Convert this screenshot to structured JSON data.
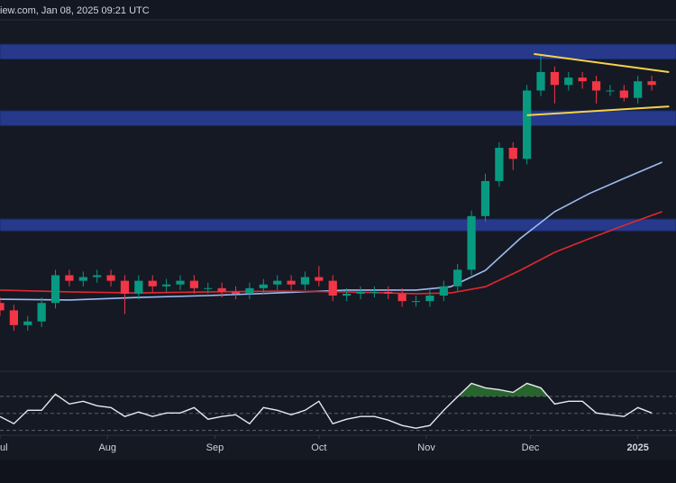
{
  "chart_data": {
    "type": "candlestick",
    "header": "iew.com, Jan 08, 2025 09:21 UTC",
    "xlim": [
      0,
      195
    ],
    "xticks": [
      {
        "value": 0,
        "label": "ul"
      },
      {
        "value": 31,
        "label": "Aug"
      },
      {
        "value": 62,
        "label": "Sep"
      },
      {
        "value": 92,
        "label": "Oct"
      },
      {
        "value": 123,
        "label": "Nov"
      },
      {
        "value": 153,
        "label": "Dec"
      },
      {
        "value": 184,
        "label": "2025"
      }
    ],
    "ylim": [
      0,
      100
    ],
    "up_color": "#089981",
    "down_color": "#f23645",
    "x": [
      0,
      4,
      8,
      12,
      16,
      20,
      24,
      28,
      32,
      36,
      40,
      44,
      48,
      52,
      56,
      60,
      64,
      68,
      72,
      76,
      80,
      84,
      88,
      92,
      96,
      100,
      104,
      108,
      112,
      116,
      120,
      124,
      128,
      132,
      136,
      140,
      144,
      148,
      152,
      156,
      160,
      164,
      168,
      172,
      176,
      180,
      184,
      188
    ],
    "open": [
      18,
      16,
      12,
      13,
      18,
      25.5,
      24,
      25,
      25.5,
      24,
      20.5,
      24,
      22.5,
      23,
      24,
      22,
      22,
      21,
      20.5,
      22,
      23,
      24,
      23,
      25,
      24,
      20,
      20.5,
      21,
      21,
      20.5,
      18.5,
      18.5,
      20,
      22.5,
      27,
      41.5,
      51,
      60,
      57,
      75.5,
      80.5,
      77,
      79,
      78,
      75.5,
      75.5,
      73.5,
      78
    ],
    "high": [
      19.5,
      17.5,
      14.5,
      19.5,
      27,
      27,
      26.5,
      27,
      27,
      25.5,
      25.5,
      25.5,
      24.5,
      25.5,
      25.5,
      23.5,
      23.5,
      22.5,
      23.5,
      24.5,
      25.5,
      25.5,
      26.5,
      28,
      25.5,
      22,
      22.5,
      22.5,
      22.5,
      22,
      20,
      21.5,
      24,
      28.5,
      43,
      53,
      61.5,
      61.5,
      77,
      85,
      82,
      80.5,
      80.5,
      79.5,
      77,
      77,
      79.5,
      79.5
    ],
    "low": [
      14.5,
      10.5,
      10.5,
      11.5,
      16.5,
      22.5,
      22.5,
      23.5,
      22.5,
      15,
      19,
      21,
      21,
      21.5,
      20.5,
      20.5,
      19.5,
      19,
      19,
      20.5,
      21.5,
      21.5,
      21.5,
      22.5,
      18.5,
      18.5,
      19,
      19.5,
      19,
      17,
      17,
      17,
      18.5,
      21,
      25.5,
      40,
      49.5,
      54,
      55.5,
      74,
      72,
      75.5,
      76,
      72,
      74,
      72.5,
      72,
      75.5
    ],
    "close": [
      16,
      12,
      13,
      18,
      25.5,
      24,
      25,
      25.5,
      24,
      20.5,
      24,
      22.5,
      23,
      24,
      22,
      22,
      21,
      20.5,
      22,
      23,
      24,
      23,
      25,
      24,
      20,
      20.5,
      21,
      21,
      20.5,
      18.5,
      18.5,
      20,
      22.5,
      27,
      41.5,
      51,
      60,
      57,
      75.5,
      80.5,
      77,
      79,
      78,
      75.5,
      75.5,
      73.5,
      78,
      77
    ],
    "zones": [
      {
        "values": [
          84,
          88
        ],
        "color": "#26398a"
      },
      {
        "values": [
          66,
          70
        ],
        "color": "#26398a"
      },
      {
        "values": [
          37.5,
          40.7
        ],
        "color": "#26398a"
      }
    ],
    "series": [
      {
        "color": "#9cbcf0",
        "x": [
          0,
          20,
          40,
          60,
          80,
          100,
          120,
          130,
          140,
          150,
          160,
          170,
          180,
          191
        ],
        "values": [
          19,
          18.8,
          19.5,
          20,
          20.7,
          21.5,
          21.5,
          22.4,
          26.8,
          35.4,
          42.7,
          47.6,
          51.7,
          56.1
        ]
      },
      {
        "color": "#e0282e",
        "x": [
          0,
          20,
          40,
          60,
          80,
          100,
          120,
          130,
          140,
          150,
          160,
          170,
          180,
          191
        ],
        "values": [
          21.5,
          21,
          20.7,
          21,
          21.2,
          21,
          20.5,
          20.7,
          22.4,
          26.8,
          31.7,
          35.4,
          39,
          42.7
        ]
      }
    ],
    "trendlines": [
      {
        "color": "#f5d24a",
        "x": [
          154,
          193
        ],
        "values": [
          85.4,
          80.5
        ]
      },
      {
        "color": "#f5d24a",
        "x": [
          152,
          193
        ],
        "values": [
          68.8,
          71.2
        ]
      }
    ],
    "rsi": {
      "color": "#e8eaf0",
      "fill_color": "#2e7d32",
      "ylim": [
        0,
        100
      ],
      "levels": [
        30,
        50,
        70
      ],
      "values": [
        46.3,
        37.9,
        53.7,
        53.7,
        72.6,
        61.1,
        64.2,
        58.9,
        56.8,
        46.3,
        51.6,
        46.3,
        50.5,
        50.5,
        56.8,
        43.2,
        46.3,
        48.4,
        37.9,
        56.8,
        53.7,
        48.4,
        53.7,
        64.2,
        37.9,
        43.2,
        46.3,
        46.3,
        42.1,
        35.8,
        32.6,
        35.8,
        53.7,
        69.5,
        85.3,
        80,
        77.9,
        74.7,
        85.3,
        80,
        61.1,
        64.2,
        64.2,
        50.5,
        48.4,
        46.3,
        56.8,
        50.5
      ]
    }
  }
}
